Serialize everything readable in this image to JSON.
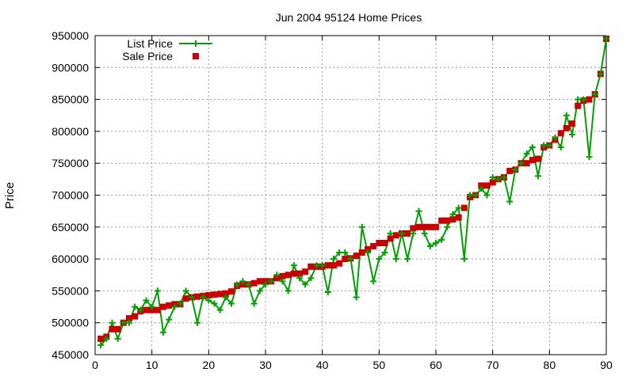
{
  "chart_data": {
    "type": "line",
    "title": "Jun 2004 95124 Home Prices",
    "xlabel": "",
    "ylabel": "Price",
    "xlim": [
      0,
      90
    ],
    "ylim": [
      450000,
      950000
    ],
    "x_ticks": [
      "0",
      "10",
      "20",
      "30",
      "40",
      "50",
      "60",
      "70",
      "80",
      "90"
    ],
    "y_ticks": [
      "450000",
      "500000",
      "550000",
      "600000",
      "650000",
      "700000",
      "750000",
      "800000",
      "850000",
      "900000",
      "950000"
    ],
    "grid": true,
    "legend_position": "top-left",
    "x": [
      1,
      2,
      3,
      4,
      5,
      6,
      7,
      8,
      9,
      10,
      11,
      12,
      13,
      14,
      15,
      16,
      17,
      18,
      19,
      20,
      21,
      22,
      23,
      24,
      25,
      26,
      27,
      28,
      29,
      30,
      31,
      32,
      33,
      34,
      35,
      36,
      37,
      38,
      39,
      40,
      41,
      42,
      43,
      44,
      45,
      46,
      47,
      48,
      49,
      50,
      51,
      52,
      53,
      54,
      55,
      56,
      57,
      58,
      59,
      60,
      61,
      62,
      63,
      64,
      65,
      66,
      67,
      68,
      69,
      70,
      71,
      72,
      73,
      74,
      75,
      76,
      77,
      78,
      79,
      80,
      81,
      82,
      83,
      84,
      85,
      86,
      87,
      88,
      89,
      90
    ],
    "series": [
      {
        "name": "List Price",
        "color": "#00a000",
        "marker": "plus",
        "values": [
          465000,
          475000,
          500000,
          475000,
          500000,
          500000,
          525000,
          520000,
          535000,
          525000,
          550000,
          485000,
          505000,
          525000,
          530000,
          550000,
          540000,
          500000,
          540000,
          535000,
          530000,
          520000,
          540000,
          530000,
          560000,
          565000,
          560000,
          530000,
          550000,
          560000,
          565000,
          575000,
          565000,
          550000,
          590000,
          570000,
          560000,
          570000,
          590000,
          590000,
          548000,
          600000,
          610000,
          610000,
          600000,
          540000,
          650000,
          610000,
          565000,
          600000,
          610000,
          640000,
          600000,
          640000,
          600000,
          640000,
          675000,
          640000,
          620000,
          625000,
          630000,
          650000,
          670000,
          680000,
          600000,
          700000,
          700000,
          710000,
          700000,
          728000,
          725000,
          728000,
          690000,
          740000,
          750000,
          765000,
          775000,
          730000,
          778000,
          778000,
          790000,
          775000,
          825000,
          795000,
          850000,
          850000,
          760000,
          858000,
          890000,
          945000
        ]
      },
      {
        "name": "Sale Price",
        "color": "#c80000",
        "marker": "square",
        "values": [
          475000,
          478000,
          490000,
          490000,
          500000,
          507000,
          510000,
          518000,
          520000,
          520000,
          520000,
          525000,
          527000,
          529000,
          529000,
          538000,
          540000,
          541000,
          542000,
          543000,
          544000,
          545000,
          546000,
          549000,
          558000,
          560000,
          560000,
          562000,
          565000,
          565000,
          565000,
          570000,
          573000,
          575000,
          577000,
          577000,
          580000,
          588000,
          588000,
          588000,
          590000,
          590000,
          593000,
          600000,
          601000,
          605000,
          610000,
          615000,
          620000,
          625000,
          625000,
          632000,
          637000,
          640000,
          640000,
          648000,
          650000,
          650000,
          650000,
          650000,
          660000,
          660000,
          662000,
          665000,
          680000,
          697000,
          700000,
          715000,
          715000,
          720000,
          725000,
          728000,
          738000,
          740000,
          750000,
          750000,
          755000,
          757000,
          775000,
          778000,
          787000,
          797000,
          805000,
          812000,
          840000,
          848000,
          850000,
          858000,
          890000,
          945000
        ]
      }
    ]
  }
}
